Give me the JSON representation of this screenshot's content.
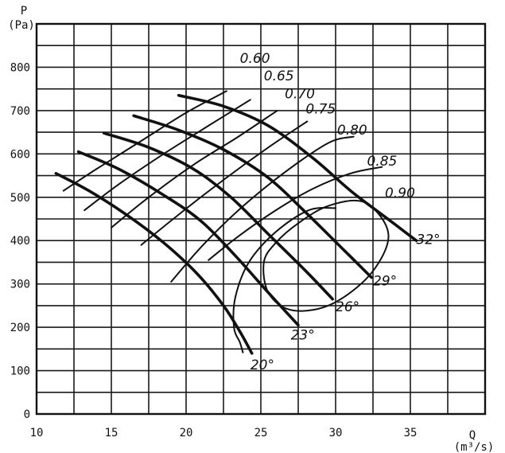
{
  "chart_data": {
    "type": "line",
    "title": "",
    "xlabel": "Q",
    "xlabel_unit": "(m³/s)",
    "ylabel": "P",
    "ylabel_unit": "(Pa)",
    "xlim": [
      10,
      40
    ],
    "ylim": [
      0,
      900
    ],
    "x_ticks": [
      10,
      15,
      20,
      25,
      30,
      35
    ],
    "y_ticks": [
      0,
      100,
      200,
      300,
      400,
      500,
      600,
      700,
      800
    ],
    "grid": true,
    "series": [
      {
        "name": "20°",
        "kind": "blade-angle",
        "points": [
          [
            11.3,
            555
          ],
          [
            13.5,
            515
          ],
          [
            16,
            460
          ],
          [
            18.5,
            395
          ],
          [
            20.7,
            325
          ],
          [
            22.5,
            250
          ],
          [
            23.6,
            190
          ],
          [
            24.4,
            140
          ]
        ]
      },
      {
        "name": "23°",
        "kind": "blade-angle",
        "points": [
          [
            12.8,
            605
          ],
          [
            15.5,
            565
          ],
          [
            18.5,
            505
          ],
          [
            21,
            445
          ],
          [
            23.3,
            365
          ],
          [
            25.5,
            280
          ],
          [
            27.5,
            205
          ]
        ]
      },
      {
        "name": "26°",
        "kind": "blade-angle",
        "points": [
          [
            14.5,
            648
          ],
          [
            17.5,
            615
          ],
          [
            20.5,
            565
          ],
          [
            23,
            500
          ],
          [
            25.5,
            415
          ],
          [
            28,
            330
          ],
          [
            29.8,
            265
          ]
        ]
      },
      {
        "name": "29°",
        "kind": "blade-angle",
        "points": [
          [
            16.5,
            688
          ],
          [
            19.5,
            655
          ],
          [
            22.5,
            610
          ],
          [
            25.5,
            545
          ],
          [
            28,
            465
          ],
          [
            30.5,
            380
          ],
          [
            32.4,
            315
          ]
        ]
      },
      {
        "name": "32°",
        "kind": "blade-angle",
        "points": [
          [
            19.5,
            735
          ],
          [
            22.5,
            710
          ],
          [
            25.5,
            665
          ],
          [
            28.5,
            590
          ],
          [
            31,
            515
          ],
          [
            33.3,
            455
          ],
          [
            35.4,
            400
          ]
        ]
      },
      {
        "name": "0.60",
        "kind": "efficiency",
        "points": [
          [
            11.8,
            515
          ],
          [
            14,
            565
          ],
          [
            17,
            630
          ],
          [
            20,
            695
          ],
          [
            22.7,
            745
          ]
        ]
      },
      {
        "name": "0.65",
        "kind": "efficiency",
        "points": [
          [
            13.2,
            470
          ],
          [
            15.5,
            530
          ],
          [
            18.5,
            600
          ],
          [
            21.5,
            665
          ],
          [
            24.3,
            725
          ]
        ]
      },
      {
        "name": "0.70",
        "kind": "efficiency",
        "points": [
          [
            15,
            430
          ],
          [
            17.5,
            500
          ],
          [
            20.5,
            575
          ],
          [
            23.5,
            640
          ],
          [
            26.1,
            700
          ]
        ]
      },
      {
        "name": "0.75",
        "kind": "efficiency",
        "points": [
          [
            17,
            390
          ],
          [
            19.5,
            460
          ],
          [
            22.5,
            540
          ],
          [
            25.5,
            615
          ],
          [
            28.1,
            675
          ]
        ]
      },
      {
        "name": "0.80",
        "kind": "efficiency",
        "points": [
          [
            19,
            305
          ],
          [
            21,
            385
          ],
          [
            23.5,
            470
          ],
          [
            26.5,
            555
          ],
          [
            29.5,
            625
          ],
          [
            31.2,
            640
          ]
        ]
      },
      {
        "name": "0.85",
        "kind": "efficiency",
        "points": [
          [
            21.5,
            355
          ],
          [
            23.5,
            410
          ],
          [
            26,
            470
          ],
          [
            28.5,
            520
          ],
          [
            31,
            555
          ],
          [
            33.1,
            570
          ]
        ]
      },
      {
        "name": "0.90",
        "kind": "efficiency",
        "loop": true,
        "points": [
          [
            25.2,
            350
          ],
          [
            25.5,
            280
          ],
          [
            27,
            240
          ],
          [
            29.5,
            250
          ],
          [
            32,
            310
          ],
          [
            33.4,
            385
          ],
          [
            33.3,
            440
          ],
          [
            31.8,
            490
          ],
          [
            29.5,
            480
          ],
          [
            27.5,
            440
          ],
          [
            26,
            395
          ]
        ]
      },
      {
        "name": "0.85-envelope",
        "kind": "efficiency",
        "points": [
          [
            23.8,
            142
          ],
          [
            23.6,
            165
          ],
          [
            23.2,
            200
          ],
          [
            23.3,
            270
          ],
          [
            24.2,
            350
          ],
          [
            26,
            420
          ],
          [
            28.2,
            470
          ],
          [
            30,
            475
          ]
        ]
      }
    ],
    "labels": [
      {
        "text": "0.60",
        "x": 23.6,
        "y": 810
      },
      {
        "text": "0.65",
        "x": 25.2,
        "y": 770
      },
      {
        "text": "0.70",
        "x": 26.6,
        "y": 728
      },
      {
        "text": "0.75",
        "x": 28.0,
        "y": 693
      },
      {
        "text": "0.80",
        "x": 30.1,
        "y": 645
      },
      {
        "text": "0.85",
        "x": 32.1,
        "y": 573
      },
      {
        "text": "0.90",
        "x": 33.3,
        "y": 500
      },
      {
        "text": "32°",
        "x": 35.4,
        "y": 392
      },
      {
        "text": "29°",
        "x": 32.5,
        "y": 297
      },
      {
        "text": "26°",
        "x": 30.0,
        "y": 237
      },
      {
        "text": "23°",
        "x": 27.0,
        "y": 172
      },
      {
        "text": "20°",
        "x": 24.3,
        "y": 103
      }
    ]
  }
}
